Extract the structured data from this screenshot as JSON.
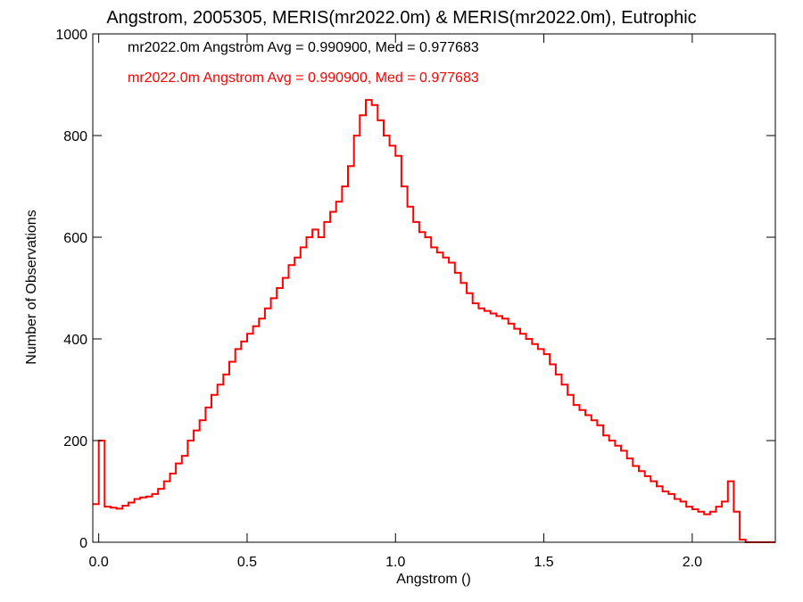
{
  "chart_data": {
    "type": "line",
    "step": true,
    "title": "Angstrom, 2005305, MERIS(mr2022.0m) & MERIS(mr2022.0m), Eutrophic",
    "xlabel": "Angstrom ()",
    "ylabel": "Number of Observations",
    "xlim": [
      -0.02,
      2.28
    ],
    "ylim": [
      0,
      1000
    ],
    "xticks": [
      0.0,
      0.5,
      1.0,
      1.5,
      2.0
    ],
    "xtick_labels": [
      "0.0",
      "0.5",
      "1.0",
      "1.5",
      "2.0"
    ],
    "yticks": [
      0,
      200,
      400,
      600,
      800,
      1000
    ],
    "ytick_labels": [
      "0",
      "200",
      "400",
      "600",
      "800",
      "1000"
    ],
    "grid": false,
    "legend": [
      {
        "text": "mr2022.0m Angstrom Avg = 0.990900, Med = 0.977683",
        "color": "#000000"
      },
      {
        "text": "mr2022.0m Angstrom Avg = 0.990900, Med = 0.977683",
        "color": "#ff0000"
      }
    ],
    "series": [
      {
        "color": "#ff0000",
        "x": [
          -0.02,
          0.0,
          0.02,
          0.04,
          0.06,
          0.08,
          0.1,
          0.12,
          0.14,
          0.16,
          0.18,
          0.2,
          0.22,
          0.24,
          0.26,
          0.28,
          0.3,
          0.32,
          0.34,
          0.36,
          0.38,
          0.4,
          0.42,
          0.44,
          0.46,
          0.48,
          0.5,
          0.52,
          0.54,
          0.56,
          0.58,
          0.6,
          0.62,
          0.64,
          0.66,
          0.68,
          0.7,
          0.72,
          0.74,
          0.76,
          0.78,
          0.8,
          0.82,
          0.84,
          0.86,
          0.88,
          0.9,
          0.92,
          0.94,
          0.96,
          0.98,
          1.0,
          1.02,
          1.04,
          1.06,
          1.08,
          1.1,
          1.12,
          1.14,
          1.16,
          1.18,
          1.2,
          1.22,
          1.24,
          1.26,
          1.28,
          1.3,
          1.32,
          1.34,
          1.36,
          1.38,
          1.4,
          1.42,
          1.44,
          1.46,
          1.48,
          1.5,
          1.52,
          1.54,
          1.56,
          1.58,
          1.6,
          1.62,
          1.64,
          1.66,
          1.68,
          1.7,
          1.72,
          1.74,
          1.76,
          1.78,
          1.8,
          1.82,
          1.84,
          1.86,
          1.88,
          1.9,
          1.92,
          1.94,
          1.96,
          1.98,
          2.0,
          2.02,
          2.04,
          2.06,
          2.08,
          2.1,
          2.12,
          2.14,
          2.16,
          2.18,
          2.2,
          2.22,
          2.24,
          2.26,
          2.28
        ],
        "y": [
          75,
          200,
          70,
          68,
          66,
          72,
          78,
          85,
          88,
          90,
          95,
          105,
          120,
          135,
          155,
          170,
          200,
          220,
          240,
          265,
          290,
          310,
          330,
          355,
          380,
          395,
          410,
          425,
          440,
          460,
          480,
          500,
          520,
          545,
          560,
          580,
          600,
          615,
          600,
          630,
          650,
          670,
          700,
          740,
          800,
          840,
          870,
          860,
          830,
          800,
          780,
          760,
          700,
          660,
          630,
          610,
          600,
          580,
          570,
          560,
          550,
          530,
          510,
          490,
          470,
          460,
          455,
          450,
          445,
          440,
          430,
          420,
          410,
          400,
          390,
          380,
          370,
          350,
          330,
          310,
          290,
          270,
          260,
          250,
          240,
          230,
          210,
          200,
          190,
          180,
          165,
          150,
          140,
          130,
          120,
          110,
          100,
          95,
          85,
          80,
          70,
          65,
          60,
          55,
          60,
          70,
          80,
          120,
          60,
          5,
          0,
          0,
          0,
          0,
          0,
          0
        ]
      }
    ]
  }
}
